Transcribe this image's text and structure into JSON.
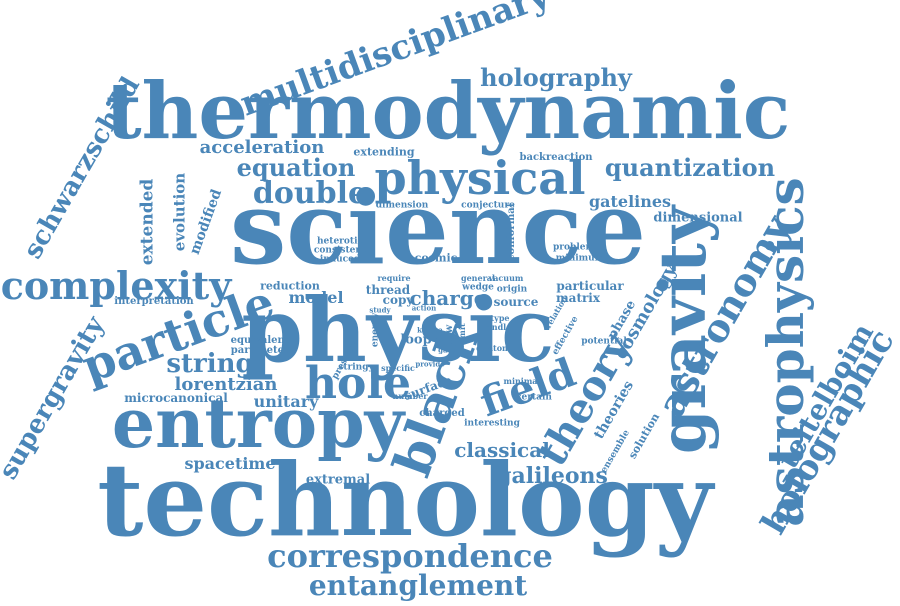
{
  "colors": {
    "word": "#4a86b8",
    "background": "#ffffff"
  },
  "words": {
    "technology": "technology",
    "science": "science",
    "physic": "physic",
    "thermodynamic": "thermodynamic",
    "entropy": "entropy",
    "gravity": "gravity",
    "astrophysics": "astrophysics",
    "black": "black",
    "physical": "physical",
    "particle": "particle",
    "complexity": "complexity",
    "correspondence": "correspondence",
    "entanglement": "entanglement",
    "multidisciplinary": "multidisciplinary",
    "holography": "holography",
    "holographic": "holographic",
    "astronomy": "astronomy",
    "teitelboim": "teitelboim",
    "theory": "theory",
    "field": "field",
    "hole": "hole",
    "schwarzschild": "schwarzschild",
    "supergravity": "supergravity",
    "quantization": "quantization",
    "double": "double",
    "equation": "equation",
    "acceleration": "acceleration",
    "string": "string",
    "lorentzian": "lorentzian",
    "unitary": "unitary",
    "microcanonical": "microcanonical",
    "spacetime": "spacetime",
    "extremal": "extremal",
    "galileons": "galileons",
    "classical": "classical",
    "cosmology": "cosmology",
    "gatelines": "gatelines",
    "dimensional": "dimensional",
    "model": "model",
    "charge": "charge",
    "thread": "thread",
    "copy": "copy",
    "matrix": "matrix",
    "particular": "particular",
    "reduction": "reduction",
    "interpretation": "interpretation",
    "equivalent": "equivalent",
    "parameter": "parameter",
    "extended": "extended",
    "evolution": "evolution",
    "modified": "modified",
    "extending": "extending",
    "backreaction": "backreaction",
    "dimension": "dimension",
    "conjecture": "conjecture",
    "heterotic": "heterotic",
    "consistent": "consistent",
    "induced": "induced",
    "cosmic": "cosmic",
    "conformal": "conformal",
    "problem": "problem",
    "minimum": "minimum",
    "phase": "phase",
    "theories": "theories",
    "solution": "solution",
    "ensemble": "ensemble",
    "interesting": "interesting",
    "certain": "certain",
    "charged": "charged",
    "surface": "surface",
    "number": "number",
    "stringy": "stringy",
    "specific": "specific",
    "loop": "loop",
    "energy": "energy",
    "pressure": "pressure",
    "source": "source",
    "origin": "origin",
    "type": "type",
    "rindler": "rindler",
    "relation": "relation",
    "effective": "effective",
    "potential": "potential",
    "minimal": "minimal",
    "dilaton": "dilaton",
    "require": "require",
    "general": "general",
    "vacuum": "vacuum",
    "wedge": "wedge",
    "action": "action",
    "limit": "limit",
    "flow": "flow",
    "provide": "provide",
    "kaluza": "kaluza",
    "study": "study",
    "gauge": "gauge"
  }
}
